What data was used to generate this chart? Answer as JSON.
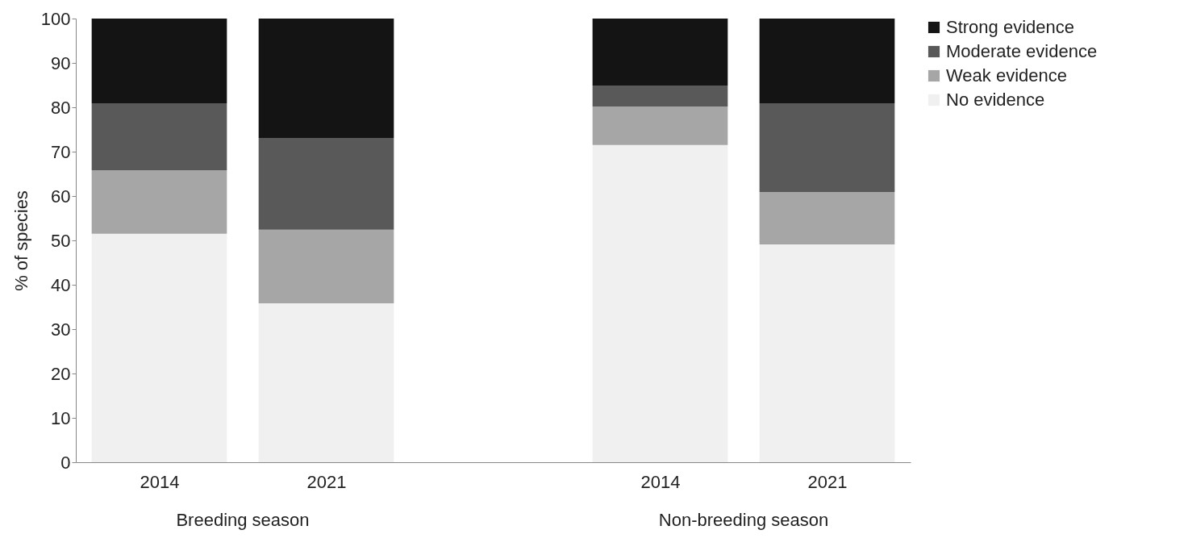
{
  "chart_data": {
    "type": "bar",
    "stacked": true,
    "ylabel": "% of species",
    "categories": [
      "2014",
      "2021",
      null,
      "2014",
      "2021"
    ],
    "series": [
      {
        "name": "No evidence",
        "color": "#f0f0f0",
        "values": [
          51.5,
          35.8,
          null,
          71.5,
          49.1
        ]
      },
      {
        "name": "Weak evidence",
        "color": "#a6a6a6",
        "values": [
          14.3,
          16.6,
          null,
          8.7,
          11.8
        ]
      },
      {
        "name": "Moderate evidence",
        "color": "#595959",
        "values": [
          15.1,
          20.7,
          null,
          4.7,
          20.0
        ]
      },
      {
        "name": "Strong evidence",
        "color": "#141414",
        "values": [
          19.1,
          26.9,
          null,
          15.1,
          19.1
        ]
      }
    ],
    "ylim": [
      0,
      100
    ],
    "yticks": [
      0,
      10,
      20,
      30,
      40,
      50,
      60,
      70,
      80,
      90,
      100
    ],
    "legend": "right",
    "grid": false,
    "annotations": [
      "Breeding season",
      "Non-breeding season"
    ]
  }
}
